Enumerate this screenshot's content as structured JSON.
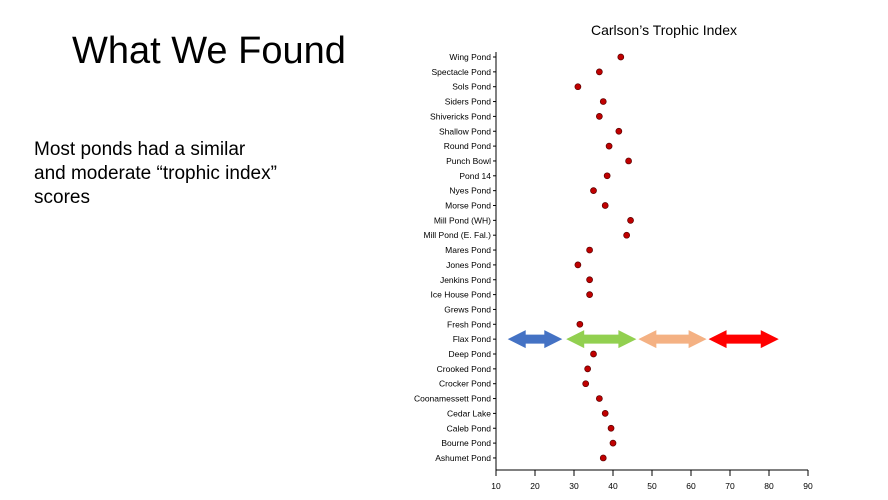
{
  "slide": {
    "title": "What We Found",
    "body_lines": [
      "Most ponds had a similar",
      "and moderate “trophic index”",
      "scores"
    ]
  },
  "chart_data": {
    "type": "scatter",
    "title": "Carlson’s Trophic Index",
    "xlim": [
      10,
      90
    ],
    "xticks": [
      10,
      20,
      30,
      40,
      50,
      60,
      70,
      80,
      90
    ],
    "categories": [
      "Wing Pond",
      "Spectacle Pond",
      "Sols Pond",
      "Siders Pond",
      "Shivericks Pond",
      "Shallow Pond",
      "Round Pond",
      "Punch Bowl",
      "Pond 14",
      "Nyes Pond",
      "Morse Pond",
      "Mill Pond (WH)",
      "Mill Pond (E. Fal.)",
      "Mares Pond",
      "Jones Pond",
      "Jenkins Pond",
      "Ice House Pond",
      "Grews Pond",
      "Fresh Pond",
      "Flax Pond",
      "Deep Pond",
      "Crooked Pond",
      "Crocker Pond",
      "Coonamessett Pond",
      "Cedar Lake",
      "Caleb Pond",
      "Bourne Pond",
      "Ashumet Pond"
    ],
    "values": [
      42,
      36.5,
      31,
      37.5,
      36.5,
      41.5,
      39,
      44,
      38.5,
      35,
      38,
      44.5,
      43.5,
      34,
      31,
      34,
      34,
      null,
      31.5,
      null,
      35,
      33.5,
      33,
      36.5,
      38,
      39.5,
      40,
      37.5
    ],
    "marker_color": "#c00000",
    "ranges": [
      {
        "from": 13,
        "to": 27,
        "color": "#4472c4"
      },
      {
        "from": 28,
        "to": 46,
        "color": "#92d050"
      },
      {
        "from": 46.5,
        "to": 64,
        "color": "#f4b183"
      },
      {
        "from": 64.5,
        "to": 82.5,
        "color": "#ff0000"
      }
    ]
  }
}
